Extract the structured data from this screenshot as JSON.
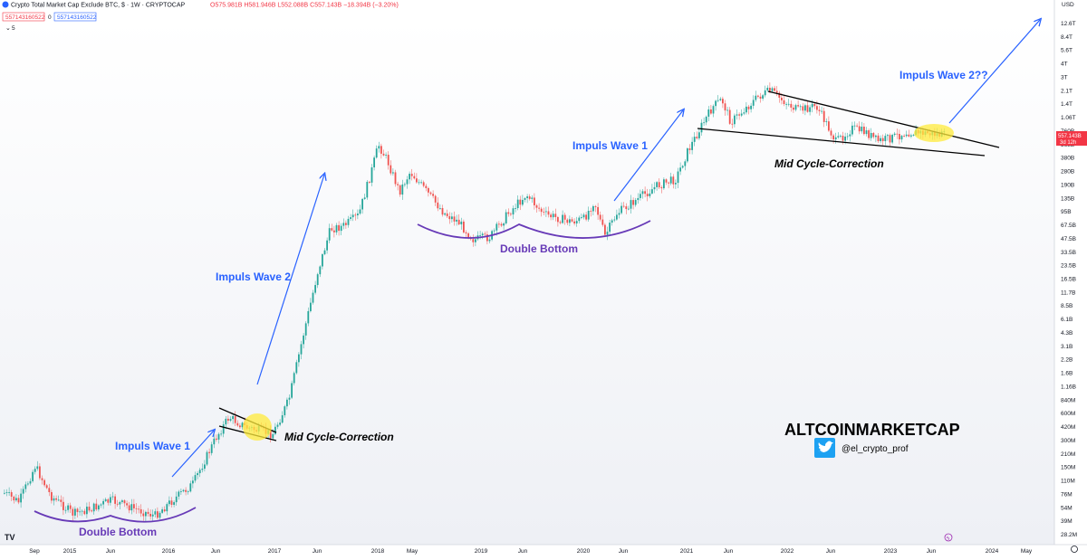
{
  "header": {
    "title": "Crypto Total Market Cap Exclude BTC, $ · 1W · CRYPTOCAP",
    "ohlc": "O575.981B H581.946B L552.088B C557.143B −18.394B (−3.20%)",
    "price_box_1": "557143160522",
    "price_box_2": "557143160522",
    "price_box_sep": "0",
    "indicator_toggle": "5"
  },
  "axis": {
    "currency": "USD",
    "price_badge_value": "557.143B",
    "price_badge_time": "3d 12h",
    "y_ticks": [
      "12.6T",
      "8.4T",
      "5.6T",
      "4T",
      "3T",
      "2.1T",
      "1.4T",
      "1.06T",
      "760B",
      "568B",
      "380B",
      "280B",
      "190B",
      "135B",
      "95B",
      "67.5B",
      "47.5B",
      "33.5B",
      "23.5B",
      "16.5B",
      "11.7B",
      "8.5B",
      "6.1B",
      "4.3B",
      "3.1B",
      "2.2B",
      "1.6B",
      "1.16B",
      "840M",
      "600M",
      "420M",
      "300M",
      "210M",
      "150M",
      "110M",
      "76M",
      "54M",
      "39M",
      "28.2M"
    ],
    "x_ticks": [
      "Sep",
      "2015",
      "Jun",
      "2016",
      "Jun",
      "2017",
      "Jun",
      "2018",
      "May",
      "2019",
      "Jun",
      "2020",
      "Jun",
      "2021",
      "Jun",
      "2022",
      "Jun",
      "2023",
      "Jun",
      "2024",
      "May"
    ]
  },
  "annotations": {
    "impuls_wave_1_left": "Impuls Wave 1",
    "impuls_wave_2_left": "Impuls Wave 2",
    "impuls_wave_1_mid": "Impuls Wave 1",
    "impuls_wave_2_right": "Impuls Wave 2??",
    "double_bottom_left": "Double Bottom",
    "double_bottom_mid": "Double Bottom",
    "mid_cycle_left": "Mid Cycle-Correction",
    "mid_cycle_right": "Mid Cycle-Correction"
  },
  "branding": {
    "name": "ALTCOINMARKETCAP",
    "twitter_handle": "@el_crypto_prof",
    "logo_icon": "tradingview-logo-icon",
    "twitter_icon": "twitter-bird-icon"
  },
  "colors": {
    "up": "#26a69a",
    "down": "#ef5350",
    "arrow": "#2962ff",
    "curve": "#673ab7",
    "highlight": "#ffeb3b",
    "badge": "#f23645"
  },
  "chart_data": {
    "type": "candlestick",
    "scale": "log",
    "title": "Crypto Total Market Cap Exclude BTC, $ · 1W · CRYPTOCAP",
    "ylabel": "USD",
    "last_close": "557.143B",
    "approx_path": [
      {
        "t": "2014-09",
        "v": "150M"
      },
      {
        "t": "2015-01",
        "v": "90M"
      },
      {
        "t": "2015-06",
        "v": "75M"
      },
      {
        "t": "2016-01",
        "v": "80M"
      },
      {
        "t": "2016-06",
        "v": "500M"
      },
      {
        "t": "2016-12",
        "v": "450M"
      },
      {
        "t": "2017-06",
        "v": "30B"
      },
      {
        "t": "2018-01",
        "v": "560B"
      },
      {
        "t": "2018-12",
        "v": "40B"
      },
      {
        "t": "2019-06",
        "v": "110B"
      },
      {
        "t": "2020-03",
        "v": "45B"
      },
      {
        "t": "2021-01",
        "v": "300B"
      },
      {
        "t": "2021-05",
        "v": "1.4T"
      },
      {
        "t": "2021-11",
        "v": "1.6T"
      },
      {
        "t": "2022-06",
        "v": "420B"
      },
      {
        "t": "2023-06",
        "v": "557B"
      }
    ]
  }
}
